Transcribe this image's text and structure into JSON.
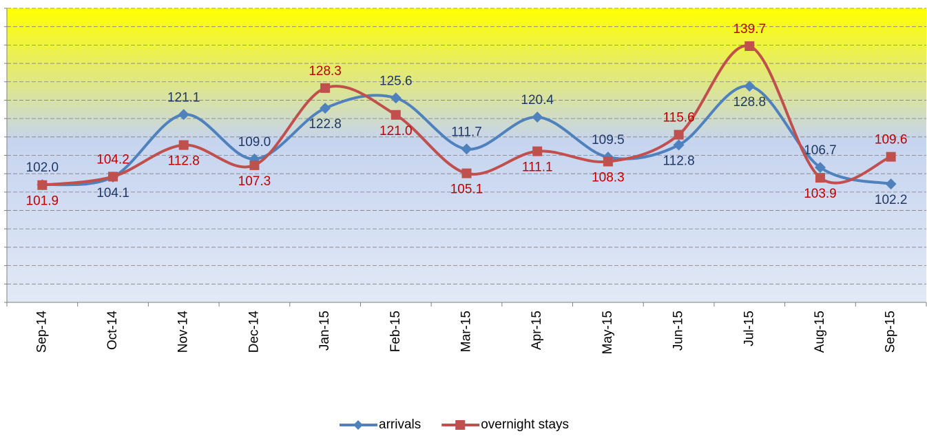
{
  "chart_data": {
    "type": "line",
    "categories": [
      "Sep-14",
      "Oct-14",
      "Nov-14",
      "Dec-14",
      "Jan-15",
      "Feb-15",
      "Mar-15",
      "Apr-15",
      "May-15",
      "Jun-15",
      "Jul-15",
      "Aug-15",
      "Sep-15"
    ],
    "series": [
      {
        "name": "arrivals",
        "color": "#4f81bd",
        "marker": "diamond",
        "label_color": "#1f3864",
        "values": [
          102.0,
          104.1,
          121.1,
          109.0,
          122.8,
          125.6,
          111.7,
          120.4,
          109.5,
          112.8,
          128.8,
          106.7,
          102.2
        ],
        "value_labels": [
          "102.0",
          "104.1",
          "121.1",
          "109.0",
          "122.8",
          "125.6",
          "111.7",
          "120.4",
          "109.5",
          "112.8",
          "128.8",
          "106.7",
          "102.2"
        ]
      },
      {
        "name": "overnight stays",
        "color": "#c0504d",
        "marker": "square",
        "label_color": "#c00000",
        "values": [
          101.9,
          104.2,
          112.8,
          107.3,
          128.3,
          121.0,
          105.1,
          111.1,
          108.3,
          115.6,
          139.7,
          103.9,
          109.6
        ],
        "value_labels": [
          "101.9",
          "104.2",
          "112.8",
          "107.3",
          "128.3",
          "121.0",
          "105.1",
          "111.1",
          "108.3",
          "115.6",
          "139.7",
          "103.9",
          "109.6"
        ]
      }
    ],
    "ylim": [
      70,
      150
    ],
    "yticks": [
      70,
      75,
      80,
      85,
      90,
      95,
      100,
      105,
      110,
      115,
      120,
      125,
      130,
      135,
      140,
      145,
      150
    ],
    "grid": true,
    "legend": "bottom"
  }
}
